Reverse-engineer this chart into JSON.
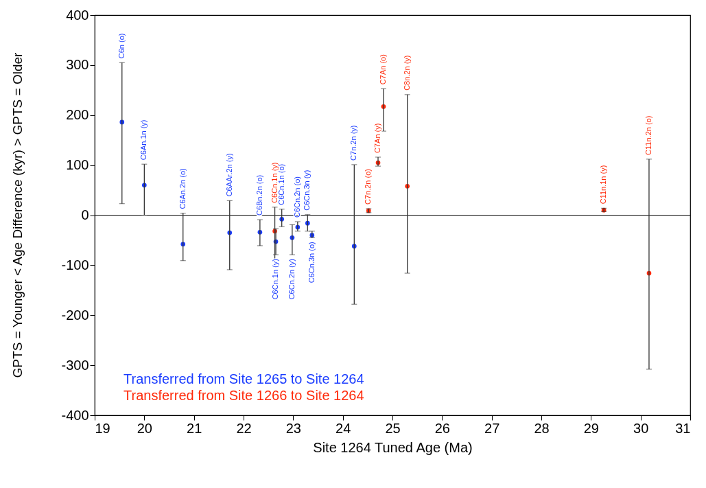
{
  "chart_data": {
    "type": "scatter",
    "xlabel": "Site 1264 Tuned Age (Ma)",
    "ylabel": "GPTS = Younger < Age Difference (kyr) > GPTS = Older",
    "xlim": [
      19,
      31
    ],
    "xticks": [
      19,
      20,
      21,
      22,
      23,
      24,
      25,
      26,
      27,
      28,
      29,
      30,
      31
    ],
    "ylim": [
      -400,
      400
    ],
    "yticks": [
      -400,
      -300,
      -200,
      -100,
      0,
      100,
      200,
      300,
      400
    ],
    "grid": false,
    "legend": "bottom left",
    "marker": "circle",
    "ref_lines": [
      {
        "axis": "y",
        "value": 0,
        "color": "#000000"
      }
    ],
    "series": [
      {
        "name": "Transferred from Site 1265 to Site 1264",
        "color": "#1a3cff",
        "x": [
          19.55,
          20.0,
          20.78,
          21.72,
          22.33,
          22.65,
          22.77,
          22.98,
          23.09,
          23.29,
          23.38,
          24.23
        ],
        "values": [
          186,
          60,
          -58,
          -35,
          -34,
          -53,
          -8,
          -45,
          -24,
          -16,
          -40,
          -62
        ],
        "errors": [
          [
            23,
            305
          ],
          [
            0,
            102
          ],
          [
            -91,
            4
          ],
          [
            -109,
            29
          ],
          [
            -61,
            -9
          ],
          [
            -79,
            -27
          ],
          [
            -23,
            12
          ],
          [
            -79,
            -19
          ],
          [
            -32,
            -13
          ],
          [
            -32,
            1
          ],
          [
            -45,
            -32
          ],
          [
            -178,
            101
          ]
        ]
      },
      {
        "name": "Transferred from Site 1266 to Site 1264",
        "color": "#ff2a0a",
        "x": [
          22.63,
          24.52,
          24.71,
          24.82,
          25.3,
          29.26,
          30.17
        ],
        "values": [
          -32,
          9,
          105,
          217,
          58,
          10,
          -116
        ],
        "errors": [
          [
            -102,
            16
          ],
          [
            5,
            13
          ],
          [
            98,
            116
          ],
          [
            168,
            253
          ],
          [
            -116,
            241
          ],
          [
            7,
            14
          ],
          [
            -308,
            112
          ]
        ]
      }
    ],
    "annotations": [
      {
        "text": "C6n (o)",
        "x": 19.55,
        "y": 305
      },
      {
        "text": "C6An.1n (y)",
        "x": 20.0,
        "y": 102
      },
      {
        "text": "C6An.2n (o)",
        "x": 20.78,
        "y": 4
      },
      {
        "text": "C6AAr.2n (y)",
        "x": 21.72,
        "y": 29
      },
      {
        "text": "C6Bn.2n (o)",
        "x": 22.33,
        "y": -9
      },
      {
        "text": "C6Cn.1n (y)",
        "x": 22.65,
        "y": -79
      },
      {
        "text": "C6Cn.1n (o)",
        "x": 22.77,
        "y": 12
      },
      {
        "text": "C6Cn.2n (y)",
        "x": 22.98,
        "y": -79
      },
      {
        "text": "C6Cn.2n (o)",
        "x": 23.09,
        "y": -13
      },
      {
        "text": "C6Cn.3n (y)",
        "x": 23.29,
        "y": 1
      },
      {
        "text": "C6Cn.3n (o)",
        "x": 23.38,
        "y": -45
      },
      {
        "text": "C7n.2n (y)",
        "x": 24.23,
        "y": 101
      },
      {
        "text": "C6Cn.1n (y)",
        "x": 22.63,
        "y": 16
      },
      {
        "text": "C7n.2n (o)",
        "x": 24.52,
        "y": 13
      },
      {
        "text": "C7An (y)",
        "x": 24.71,
        "y": 116
      },
      {
        "text": "C7An (o)",
        "x": 24.82,
        "y": 253
      },
      {
        "text": "C8n.2n (y)",
        "x": 25.3,
        "y": 241
      },
      {
        "text": "C11n.1n (y)",
        "x": 29.26,
        "y": 14
      },
      {
        "text": "C11n.2n (o)",
        "x": 30.17,
        "y": 112
      }
    ]
  }
}
